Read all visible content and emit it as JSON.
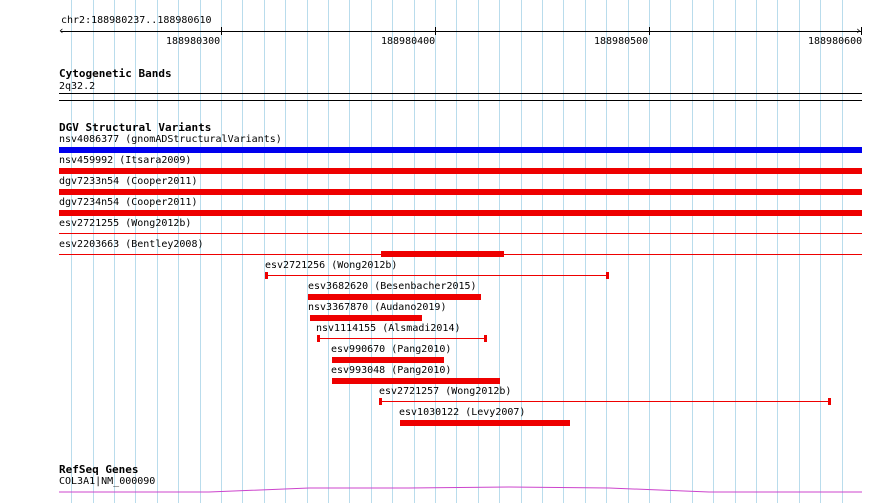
{
  "ruler": {
    "region": "chr2:188980237..188980610",
    "ticks": [
      "188980300",
      "188980400",
      "188980500",
      "188980600"
    ]
  },
  "tracks": {
    "cyto": {
      "title": "Cytogenetic Bands",
      "band": "2q32.2"
    },
    "dgv": {
      "title": "DGV Structural Variants",
      "features": [
        {
          "label": "nsv4086377 (gnomADStructuralVariants)",
          "color": "#0000ee"
        },
        {
          "label": "nsv459992 (Itsara2009)",
          "color": "#ee0000"
        },
        {
          "label": "dgv7233n54 (Cooper2011)",
          "color": "#ee0000"
        },
        {
          "label": "dgv7234n54 (Cooper2011)",
          "color": "#ee0000"
        },
        {
          "label": "esv2721255 (Wong2012b)",
          "color": "#ee0000"
        },
        {
          "label": "esv2203663 (Bentley2008)",
          "color": "#ee0000"
        },
        {
          "label": "esv2721256 (Wong2012b)",
          "color": "#ee0000"
        },
        {
          "label": "esv3682620 (Besenbacher2015)",
          "color": "#ee0000"
        },
        {
          "label": "nsv3367870 (Audano2019)",
          "color": "#ee0000"
        },
        {
          "label": "nsv1114155 (Alsmadi2014)",
          "color": "#ee0000"
        },
        {
          "label": "esv990670 (Pang2010)",
          "color": "#ee0000"
        },
        {
          "label": "esv993048 (Pang2010)",
          "color": "#ee0000"
        },
        {
          "label": "esv2721257 (Wong2012b)",
          "color": "#ee0000"
        },
        {
          "label": "esv1030122 (Levy2007)",
          "color": "#ee0000"
        }
      ]
    },
    "refseq": {
      "title": "RefSeq Genes",
      "gene": "COL3A1|NM_000090",
      "color": "#cc44cc"
    }
  }
}
